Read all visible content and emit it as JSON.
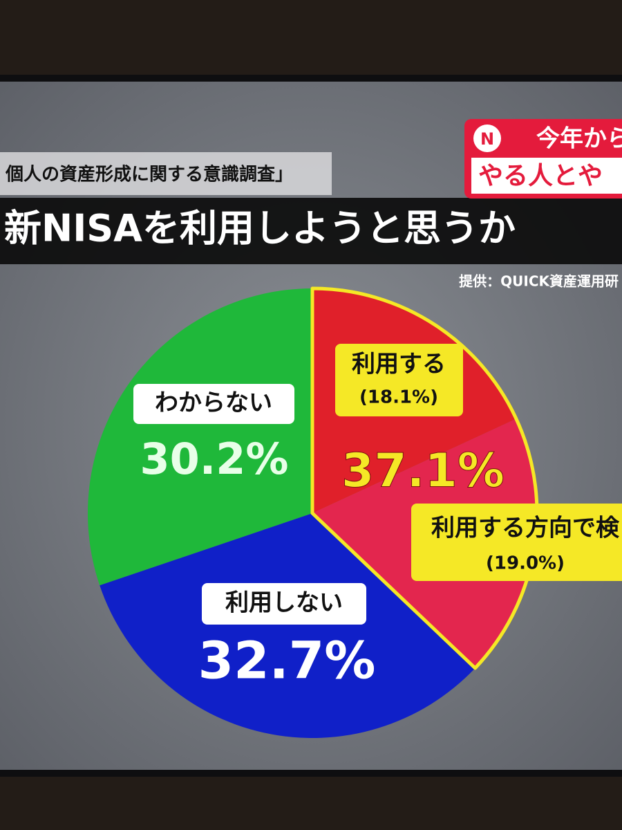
{
  "chart_data": {
    "type": "pie",
    "subtitle": "個人の資産形成に関する意識調査」",
    "title": "新NISAを利用しようと思うか",
    "source": "提供：QUICK資産運用研",
    "categories": [
      "利用する",
      "利用する方向で検",
      "利用しない",
      "わからない"
    ],
    "values": [
      18.1,
      19.0,
      32.7,
      30.2
    ],
    "value_labels": [
      "(18.1%)",
      "(19.0%)",
      "32.7%",
      "30.2%"
    ],
    "colors": [
      "#e0202a",
      "#e3264e",
      "#1020c8",
      "#1fb83a"
    ],
    "group": {
      "value": 37.1,
      "label": "37.1%",
      "color": "#f5e826"
    }
  },
  "badge": {
    "logo": "N",
    "line1": "今年から",
    "line2": "やる人とや"
  }
}
